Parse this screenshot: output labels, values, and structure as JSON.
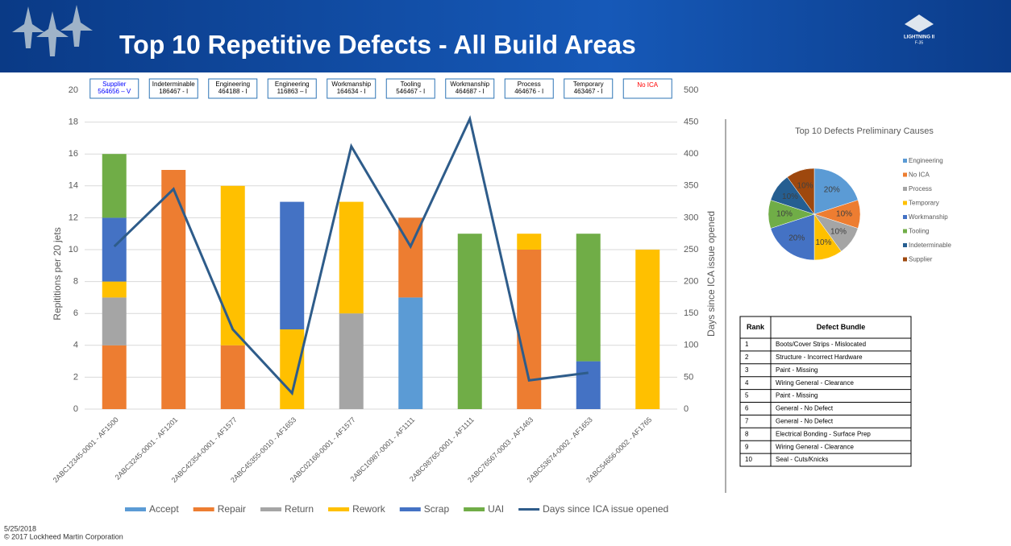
{
  "header": {
    "title": "Top 10 Repetitive Defects - All Build Areas",
    "logo_line1": "LIGHTNING II",
    "logo_line2": "F-35"
  },
  "chart_data": [
    {
      "type": "bar",
      "stacked": true,
      "categories": [
        "2ABC12345-0001 - AF1500",
        "2ABC3245-0001 - AF1201",
        "2ABC42354-0001 - AF1577",
        "2ABC45355-0010 - AF1653",
        "2ABC02168-0001 - AF1577",
        "2ABC10987-0001 - AF1111",
        "2ABC98765-0001 - AF1111",
        "2ABC76567-0003 - AF1463",
        "2ABC53674-0002 - AF1653",
        "2ABC54656-0002 - AF1765"
      ],
      "ylabel": "Repititions per 20 jets",
      "y2label": "Days since ICA issue opened",
      "ylim": [
        0,
        20
      ],
      "yticks": [
        0,
        2,
        4,
        6,
        8,
        10,
        12,
        14,
        16,
        18,
        20
      ],
      "y2lim": [
        0,
        500
      ],
      "y2ticks": [
        0,
        50,
        100,
        150,
        200,
        250,
        300,
        350,
        400,
        450,
        500
      ],
      "series": [
        {
          "name": "Accept",
          "color": "#5b9bd5",
          "values": [
            null,
            null,
            null,
            null,
            null,
            7,
            null,
            null,
            null,
            null
          ]
        },
        {
          "name": "Repair",
          "color": "#ed7d31",
          "values": [
            4,
            15,
            4,
            null,
            null,
            5,
            null,
            10,
            null,
            null
          ]
        },
        {
          "name": "Return",
          "color": "#a5a5a5",
          "values": [
            3,
            null,
            null,
            null,
            6,
            null,
            null,
            null,
            null,
            null
          ]
        },
        {
          "name": "Rework",
          "color": "#ffc000",
          "values": [
            1,
            null,
            10,
            5,
            7,
            null,
            null,
            1,
            null,
            10
          ]
        },
        {
          "name": "Scrap",
          "color": "#4472c4",
          "values": [
            4,
            null,
            null,
            8,
            null,
            null,
            null,
            null,
            3,
            null
          ]
        },
        {
          "name": "UAI",
          "color": "#70ad47",
          "values": [
            4,
            null,
            null,
            null,
            null,
            null,
            11,
            null,
            8,
            null
          ]
        },
        {
          "name": "Days since ICA issue opened",
          "type": "line",
          "axis": "y2",
          "color": "#2e5c8a",
          "values": [
            255,
            345,
            125,
            25,
            412,
            255,
            455,
            45,
            57,
            null
          ]
        }
      ],
      "annotations": [
        {
          "title": "Supplier",
          "code": "564656 – V",
          "color": "#0000ff"
        },
        {
          "title": "Indeterminable",
          "code": "186467 - I",
          "color": "#000000"
        },
        {
          "title": "Engineering",
          "code": "464188 - I",
          "color": "#000000"
        },
        {
          "title": "Engineering",
          "code": "116863 – I",
          "color": "#000000"
        },
        {
          "title": "Workmanship",
          "code": "164634 - I",
          "color": "#000000"
        },
        {
          "title": "Tooling",
          "code": "546467 - I",
          "color": "#000000"
        },
        {
          "title": "Workmanship",
          "code": "464687 - I",
          "color": "#000000"
        },
        {
          "title": "Process",
          "code": "464676 - I",
          "color": "#000000"
        },
        {
          "title": "Temporary",
          "code": "463467 - I",
          "color": "#000000"
        },
        {
          "title": "No ICA",
          "color": "#ff0000"
        }
      ]
    },
    {
      "type": "pie",
      "title": "Top 10 Defects Preliminary Causes",
      "categories": [
        "Engineering",
        "No ICA",
        "Process",
        "Temporary",
        "Workmanship",
        "Tooling",
        "Indeterminable",
        "Supplier"
      ],
      "values": [
        20,
        10,
        10,
        10,
        20,
        10,
        10,
        10
      ],
      "value_labels": [
        "20%",
        "10%",
        "10%",
        "10%",
        "20%",
        "10%",
        "10%",
        "10%"
      ],
      "colors": [
        "#5b9bd5",
        "#ed7d31",
        "#a5a5a5",
        "#ffc000",
        "#4472c4",
        "#70ad47",
        "#255e91",
        "#9e480e"
      ]
    }
  ],
  "table": {
    "headers": [
      "Rank",
      "Defect Bundle"
    ],
    "rows": [
      [
        "1",
        "Boots/Cover Strips - Mislocated"
      ],
      [
        "2",
        "Structure - Incorrect Hardware"
      ],
      [
        "3",
        "Paint - Missing"
      ],
      [
        "4",
        "Wiring General - Clearance"
      ],
      [
        "5",
        "Paint - Missing"
      ],
      [
        "6",
        "General - No Defect"
      ],
      [
        "7",
        "General - No Defect"
      ],
      [
        "8",
        "Electrical Bonding - Surface Prep"
      ],
      [
        "9",
        "Wiring General - Clearance"
      ],
      [
        "10",
        "Seal - Cuts/Knicks"
      ]
    ]
  },
  "footer": {
    "date": "5/25/2018",
    "copyright": "© 2017 Lockheed Martin Corporation"
  }
}
